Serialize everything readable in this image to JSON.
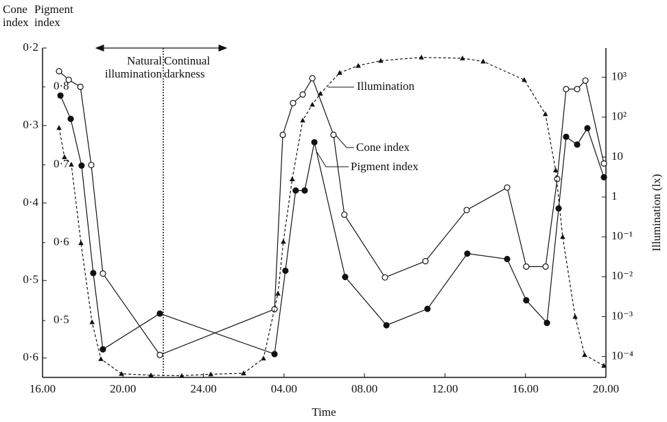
{
  "chart_data": {
    "type": "line",
    "x_label": "Time",
    "y_label": "Cone index",
    "y2_label": "Pigment index",
    "y3_label": "Illumination (lx)",
    "annotations": {
      "before": "Natural illumination",
      "after": "Continual darkness"
    },
    "divider_x": 22,
    "xlim": [
      16,
      44
    ],
    "xticks": [
      {
        "value": 16,
        "label": "16.00"
      },
      {
        "value": 20,
        "label": "20.00"
      },
      {
        "value": 24,
        "label": "24.00"
      },
      {
        "value": 28,
        "label": "04.00"
      },
      {
        "value": 32,
        "label": "08.00"
      },
      {
        "value": 36,
        "label": "12.00"
      },
      {
        "value": 40,
        "label": "16.00"
      },
      {
        "value": 44,
        "label": "20.00"
      }
    ],
    "ylim": [
      0.625,
      0.2
    ],
    "yticks": [
      {
        "value": 0.2,
        "label": "0·2"
      },
      {
        "value": 0.3,
        "label": "0·3"
      },
      {
        "value": 0.4,
        "label": "0·4"
      },
      {
        "value": 0.5,
        "label": "0·5"
      },
      {
        "value": 0.6,
        "label": "0·6"
      }
    ],
    "y2lim": [
      0.427,
      0.85
    ],
    "y2ticks": [
      {
        "value": 0.8,
        "label": "0·8"
      },
      {
        "value": 0.7,
        "label": "0·7"
      },
      {
        "value": 0.6,
        "label": "0·6"
      },
      {
        "value": 0.5,
        "label": "0·5"
      }
    ],
    "y3lim": [
      3e-05,
      5400
    ],
    "y3log": true,
    "y3ticks": [
      {
        "value": 1000,
        "label": "10³"
      },
      {
        "value": 100,
        "label": "10²"
      },
      10,
      1,
      {
        "value": 0.1,
        "label": "10⁻¹"
      },
      {
        "value": 0.01,
        "label": "10⁻²"
      },
      {
        "value": 0.001,
        "label": "10⁻³"
      },
      {
        "value": 0.0001,
        "label": "10⁻⁴"
      }
    ],
    "series": [
      {
        "name": "Cone index",
        "color": "#111111",
        "marker": "open-circle",
        "dash": false,
        "x": [
          16.82,
          17.3,
          17.88,
          18.42,
          19.0,
          21.83,
          27.53,
          27.94,
          28.45,
          28.93,
          29.41,
          30.46,
          31.0,
          33.02,
          35.03,
          37.08,
          39.09,
          40.04,
          41.0,
          41.58,
          42.02,
          42.57,
          42.98,
          43.9
        ],
        "values": [
          0.23,
          0.241,
          0.25,
          0.351,
          0.491,
          0.596,
          0.537,
          0.312,
          0.271,
          0.26,
          0.239,
          0.312,
          0.415,
          0.496,
          0.475,
          0.409,
          0.38,
          0.482,
          0.482,
          0.369,
          0.253,
          0.253,
          0.242,
          0.349
        ]
      },
      {
        "name": "Pigment index",
        "color": "#111111",
        "marker": "filled-circle",
        "dash": false,
        "axis": "y2",
        "x": [
          16.89,
          17.4,
          17.94,
          18.52,
          19.0,
          21.83,
          27.53,
          28.07,
          28.58,
          29.03,
          29.51,
          31.04,
          33.09,
          35.13,
          37.11,
          39.09,
          40.04,
          41.07,
          41.65,
          42.02,
          42.57,
          43.08,
          43.9
        ],
        "values": [
          0.789,
          0.759,
          0.699,
          0.561,
          0.463,
          0.509,
          0.457,
          0.564,
          0.667,
          0.667,
          0.729,
          0.556,
          0.494,
          0.515,
          0.586,
          0.579,
          0.526,
          0.497,
          0.644,
          0.736,
          0.726,
          0.747,
          0.684
        ]
      },
      {
        "name": "Illumination",
        "color": "#111111",
        "marker": "triangle",
        "dash": true,
        "axis": "y3",
        "x": [
          16.82,
          17.09,
          17.43,
          17.91,
          18.46,
          18.9,
          19.92,
          21.39,
          22.92,
          24.36,
          25.99,
          26.98,
          27.7,
          27.97,
          28.41,
          28.93,
          29.41,
          29.81,
          30.77,
          31.69,
          32.81,
          34.83,
          36.87,
          37.9,
          39.94,
          40.99,
          41.5,
          41.85,
          42.47,
          42.94,
          43.9
        ],
        "values": [
          54,
          10,
          6.5,
          0.07,
          0.00073,
          8.7e-05,
          3.7e-05,
          3.4e-05,
          3.3e-05,
          3.6e-05,
          3.8e-05,
          9e-05,
          0.0038,
          0.076,
          2.8,
          83,
          207,
          390,
          1300,
          1950,
          2600,
          3150,
          3000,
          2500,
          860,
          120,
          4.7,
          0.1,
          0.001,
          0.00011,
          5.9e-05
        ]
      }
    ]
  }
}
